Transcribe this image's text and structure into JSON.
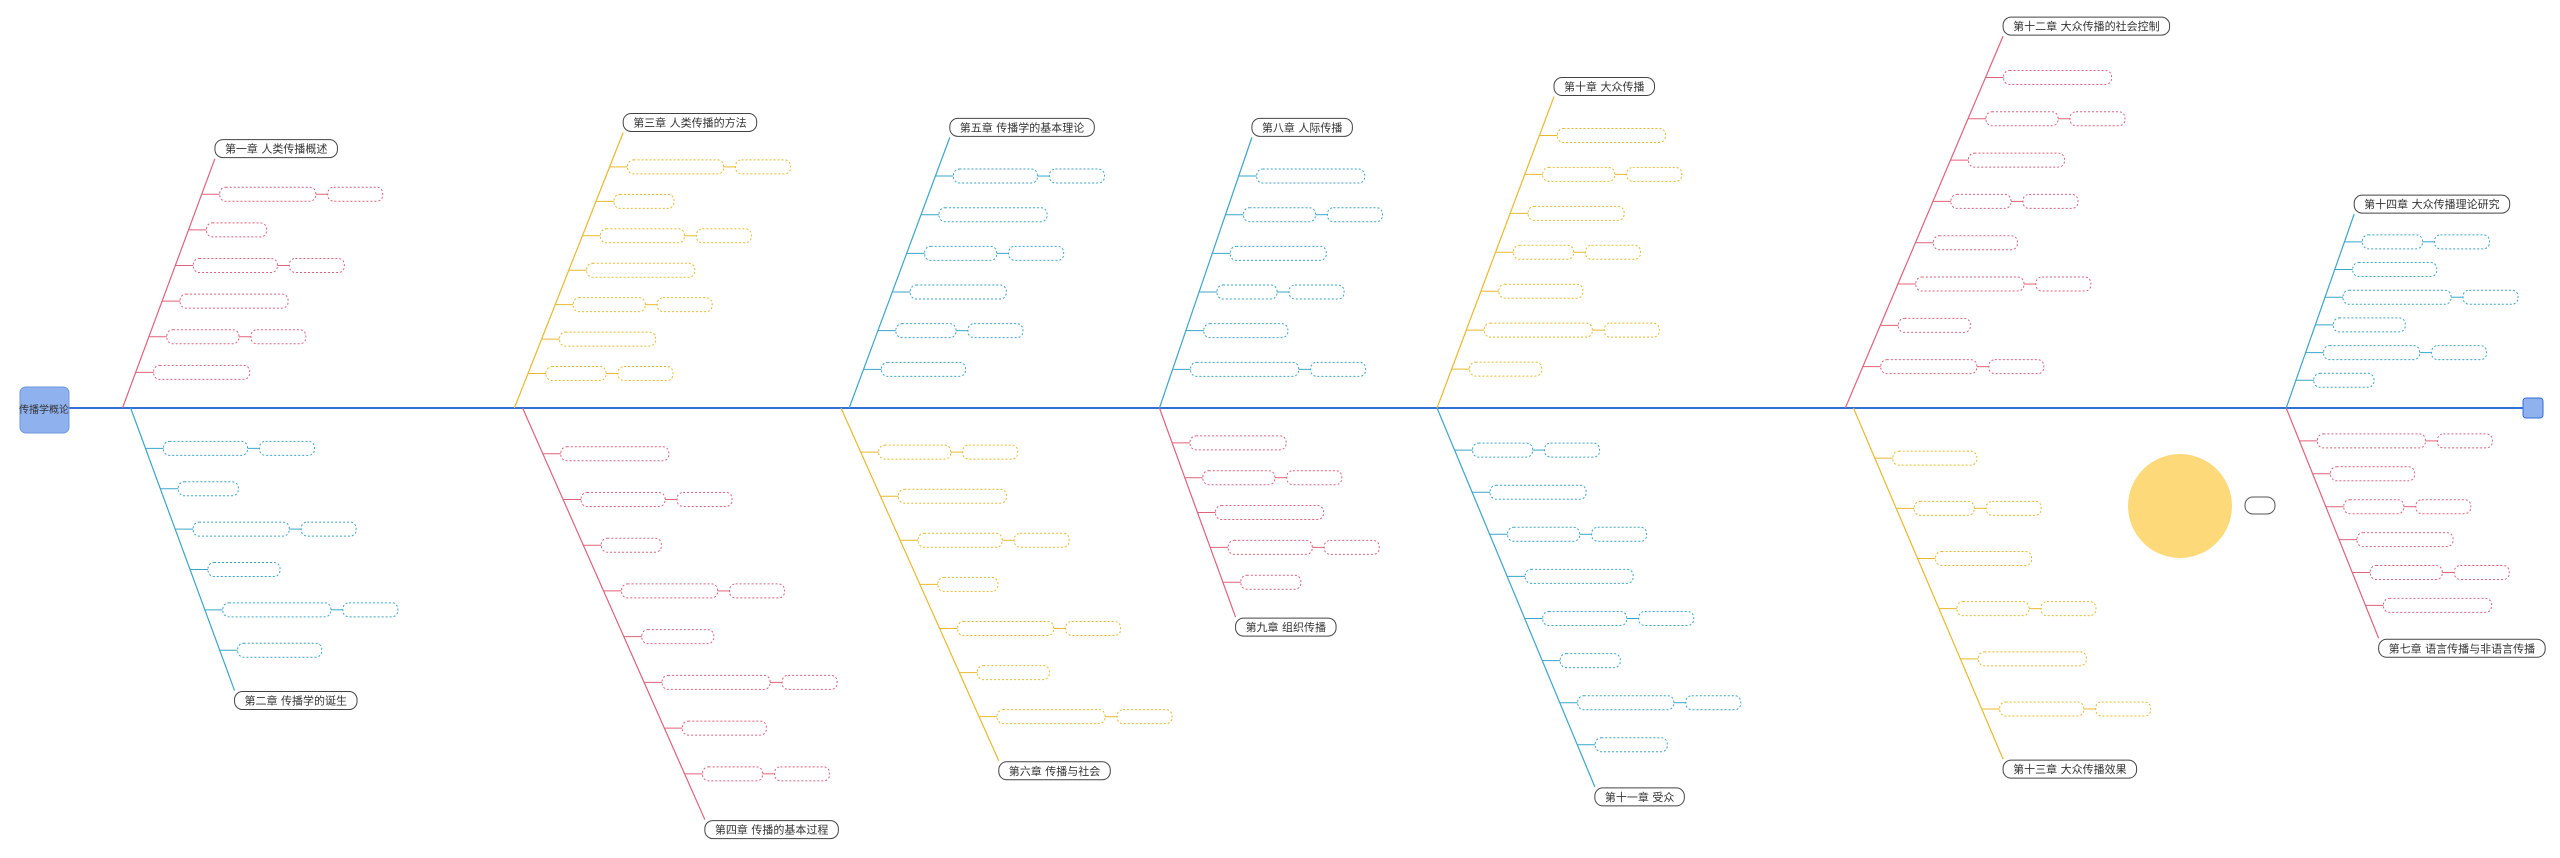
{
  "root": "传播学概论",
  "chapters": [
    {
      "label": "第一章 人类传播概述"
    },
    {
      "label": "第三章 人类传播的方法"
    },
    {
      "label": "第五章 传播学的基本理论"
    },
    {
      "label": "第八章 人际传播"
    },
    {
      "label": "第十章 大众传播"
    },
    {
      "label": "第十二章 大众传播的社会控制"
    },
    {
      "label": "第十四章 大众传播理论研究"
    },
    {
      "label": "第二章 传播学的诞生"
    },
    {
      "label": "第四章 传播的基本过程"
    },
    {
      "label": "第六章 传播与社会"
    },
    {
      "label": "第九章 组织传播"
    },
    {
      "label": "第十一章 受众"
    },
    {
      "label": "第十三章 大众传播效果"
    },
    {
      "label": "第七章 语言传播与非语言传播"
    }
  ]
}
